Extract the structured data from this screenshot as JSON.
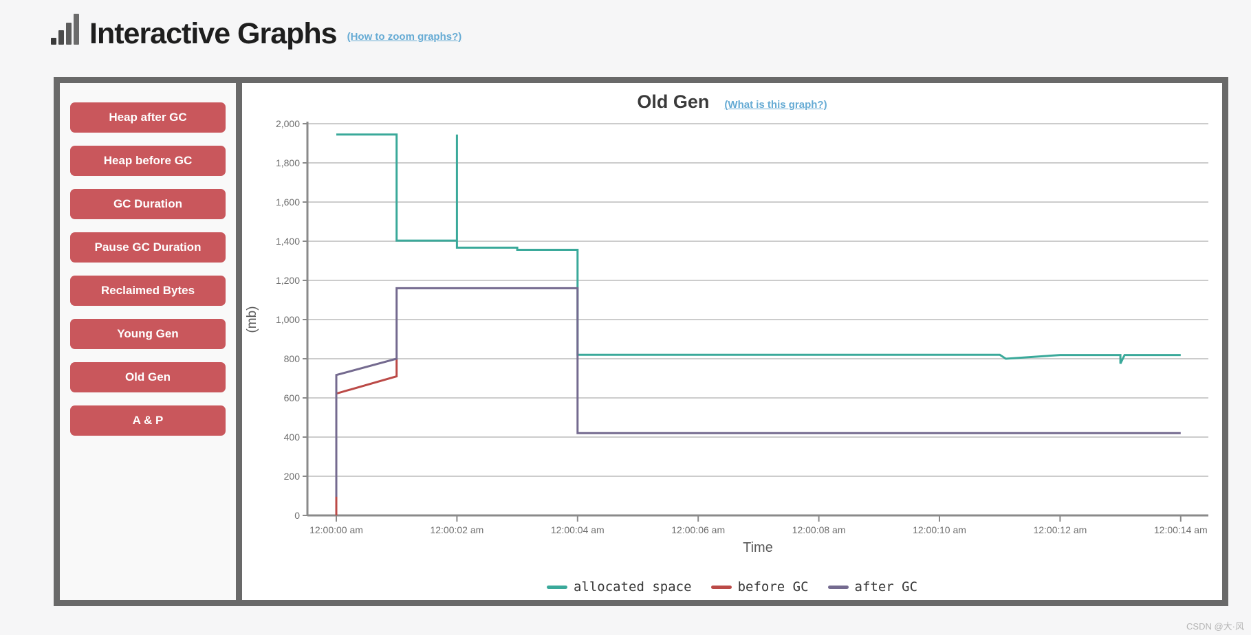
{
  "header": {
    "title": "Interactive Graphs",
    "zoom_help_link": "(How to zoom graphs?)"
  },
  "sidebar": {
    "buttons": [
      {
        "label": "Heap after GC"
      },
      {
        "label": "Heap before GC"
      },
      {
        "label": "GC Duration"
      },
      {
        "label": "Pause GC Duration"
      },
      {
        "label": "Reclaimed Bytes"
      },
      {
        "label": "Young Gen"
      },
      {
        "label": "Old Gen"
      },
      {
        "label": "A & P"
      }
    ]
  },
  "chart": {
    "title": "Old Gen",
    "info_link": "(What is this graph?)"
  },
  "watermark": "CSDN @大·风",
  "colors": {
    "button": "#c9575c",
    "link": "#66abd4",
    "frame": "#696969",
    "grid": "#cccccc",
    "axis": "#8a8a8a",
    "tick_text": "#6e6e6e",
    "axis_title_text": "#5a5a5a"
  },
  "chart_data": {
    "type": "line",
    "title": "Old Gen",
    "xlabel": "Time",
    "ylabel": "(mb)",
    "ylim": [
      0,
      2000
    ],
    "ytick_step": 200,
    "grid": true,
    "legend_position": "bottom",
    "x_unit": "seconds after 12:00:00 am",
    "x_ticks": [
      {
        "t": 0,
        "label": "12:00:00 am"
      },
      {
        "t": 2,
        "label": "12:00:02 am"
      },
      {
        "t": 4,
        "label": "12:00:04 am"
      },
      {
        "t": 6,
        "label": "12:00:06 am"
      },
      {
        "t": 8,
        "label": "12:00:08 am"
      },
      {
        "t": 10,
        "label": "12:00:10 am"
      },
      {
        "t": 12,
        "label": "12:00:12 am"
      },
      {
        "t": 14,
        "label": "12:00:14 am"
      }
    ],
    "series": [
      {
        "name": "allocated space",
        "color": "#3aa99a",
        "points": [
          [
            0,
            1945
          ],
          [
            1,
            1945
          ],
          [
            1,
            1403
          ],
          [
            2,
            1403
          ],
          [
            2,
            1945
          ],
          [
            2,
            1367
          ],
          [
            3,
            1367
          ],
          [
            3,
            1356
          ],
          [
            4,
            1356
          ],
          [
            4,
            820
          ],
          [
            11,
            820
          ],
          [
            11.1,
            800
          ],
          [
            12,
            819
          ],
          [
            13,
            819
          ],
          [
            13,
            775
          ],
          [
            13.07,
            819
          ],
          [
            14,
            819
          ]
        ]
      },
      {
        "name": "before GC",
        "color": "#bb4a47",
        "points": [
          [
            0,
            0
          ],
          [
            0,
            622
          ],
          [
            1,
            710
          ],
          [
            1,
            800
          ]
        ]
      },
      {
        "name": "after GC",
        "color": "#746a8f",
        "points": [
          [
            0,
            95
          ],
          [
            0,
            717
          ],
          [
            1,
            800
          ],
          [
            1,
            1160
          ],
          [
            4,
            1160
          ],
          [
            4,
            420
          ],
          [
            14,
            420
          ]
        ]
      }
    ]
  }
}
